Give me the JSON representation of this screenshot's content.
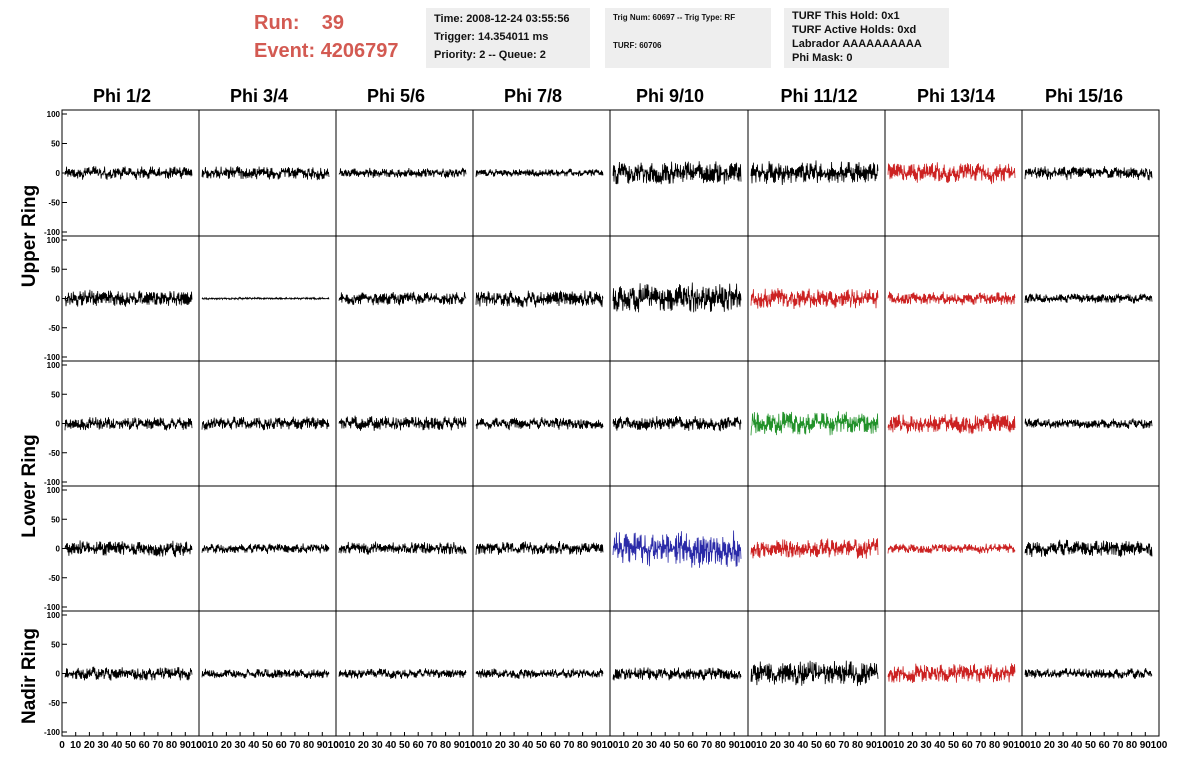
{
  "header": {
    "run_label": "Run:",
    "run_value": "39",
    "event_label": "Event:",
    "event_value": "4206797",
    "time": "Time: 2008-12-24 03:55:56",
    "trigger": "Trigger: 14.354011 ms",
    "priority": "Priority: 2 -- Queue: 2",
    "trig_num": "Trig Num: 60697 -- Trig Type: RF",
    "turf": "TURF: 60706",
    "turf_hold": "TURF This Hold: 0x1",
    "turf_active": "TURF Active Holds: 0xd",
    "labrador": "Labrador AAAAAAAAAA",
    "phi_mask": "Phi Mask: 0"
  },
  "columns": [
    "Phi 1/2",
    "Phi 3/4",
    "Phi 5/6",
    "Phi 7/8",
    "Phi 9/10",
    "Phi 11/12",
    "Phi 13/14",
    "Phi 15/16"
  ],
  "ring_labels": [
    "Upper Ring",
    "Lower Ring",
    "Nadir Ring"
  ],
  "colors": {
    "trace_default": "#000000",
    "trace_red": "#cc2222",
    "trace_green": "#22922a",
    "trace_blue": "#2a2aa8",
    "run_text": "#d35a52",
    "info_bg": "#eeeeee"
  },
  "chart_data": {
    "type": "line",
    "panels_layout": "5 rows x 8 columns of waveform panels",
    "x_label": "",
    "y_label": "",
    "xlim": [
      0,
      100
    ],
    "ylim": [
      -100,
      100
    ],
    "y_ticks": [
      100,
      50,
      0,
      -50,
      -100
    ],
    "x_ticks": [
      0,
      10,
      20,
      30,
      40,
      50,
      60,
      70,
      80,
      90,
      100
    ],
    "x_tick_labels": [
      "0",
      "10",
      "20",
      "30",
      "40",
      "50",
      "60",
      "70",
      "80",
      "90",
      "100"
    ],
    "row_trace_colors": [
      [
        "black",
        "black",
        "black",
        "black",
        "black",
        "black",
        "red",
        "black"
      ],
      [
        "black",
        "black",
        "black",
        "black",
        "black",
        "red",
        "red",
        "black"
      ],
      [
        "black",
        "black",
        "black",
        "black",
        "black",
        "green",
        "red",
        "black"
      ],
      [
        "black",
        "black",
        "black",
        "black",
        "blue",
        "red",
        "red",
        "black"
      ],
      [
        "black",
        "black",
        "black",
        "black",
        "black",
        "black",
        "red",
        "black"
      ]
    ],
    "row_trace_amplitudes": [
      [
        20,
        20,
        15,
        12,
        35,
        35,
        30,
        20
      ],
      [
        25,
        3,
        20,
        25,
        45,
        30,
        20,
        15
      ],
      [
        20,
        20,
        22,
        18,
        22,
        35,
        30,
        15
      ],
      [
        25,
        15,
        20,
        20,
        55,
        30,
        15,
        25
      ],
      [
        20,
        15,
        15,
        15,
        20,
        40,
        30,
        15
      ]
    ],
    "grid": false
  }
}
